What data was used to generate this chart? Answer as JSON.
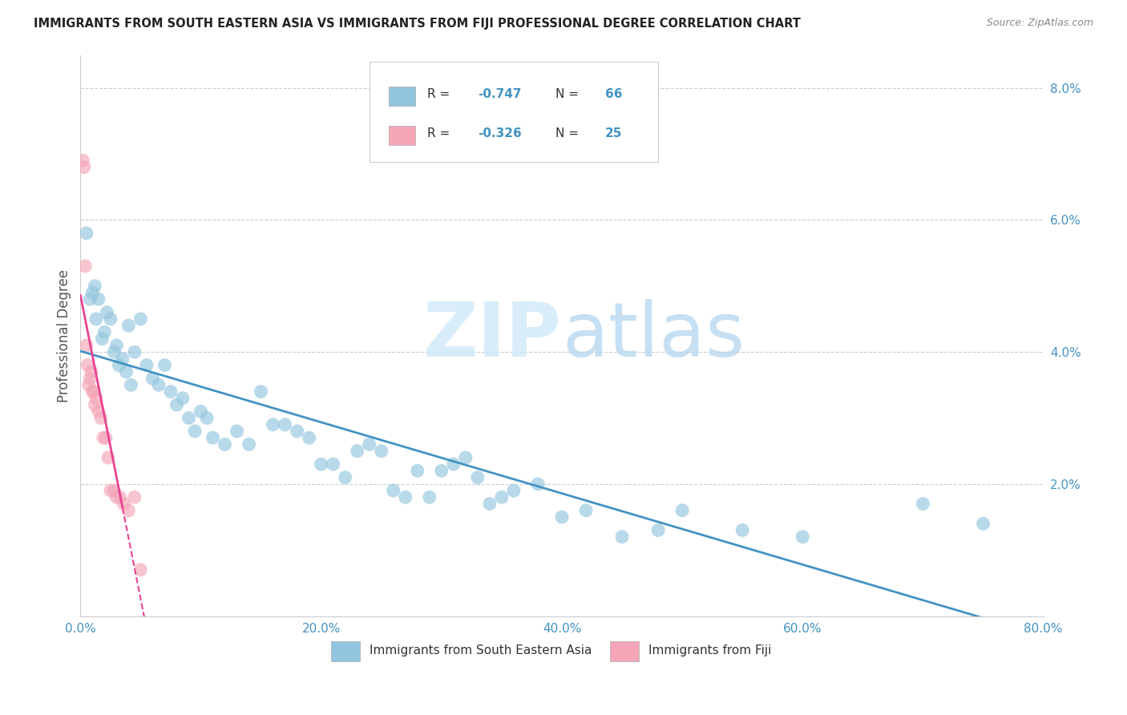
{
  "title": "IMMIGRANTS FROM SOUTH EASTERN ASIA VS IMMIGRANTS FROM FIJI PROFESSIONAL DEGREE CORRELATION CHART",
  "source": "Source: ZipAtlas.com",
  "ylabel": "Professional Degree",
  "x_tick_labels": [
    "0.0%",
    "20.0%",
    "40.0%",
    "60.0%",
    "80.0%"
  ],
  "x_tick_vals": [
    0.0,
    20.0,
    40.0,
    60.0,
    80.0
  ],
  "y_tick_labels_right": [
    "2.0%",
    "4.0%",
    "6.0%",
    "8.0%"
  ],
  "y_tick_vals": [
    2.0,
    4.0,
    6.0,
    8.0
  ],
  "xlim": [
    0.0,
    80.0
  ],
  "ylim": [
    0.0,
    8.5
  ],
  "legend_r1": "-0.747",
  "legend_n1": "66",
  "legend_r2": "-0.326",
  "legend_n2": "25",
  "blue_color": "#92c5de",
  "pink_color": "#f4a6b8",
  "trend_blue": "#4393c3",
  "trend_pink": "#e84393",
  "blue_scatter_x": [
    0.5,
    0.8,
    1.0,
    1.2,
    1.3,
    1.5,
    1.8,
    2.0,
    2.2,
    2.5,
    2.8,
    3.0,
    3.2,
    3.5,
    3.8,
    4.0,
    4.2,
    4.5,
    5.0,
    5.5,
    6.0,
    6.5,
    7.0,
    7.5,
    8.0,
    8.5,
    9.0,
    9.5,
    10.0,
    10.5,
    11.0,
    12.0,
    13.0,
    14.0,
    15.0,
    16.0,
    17.0,
    18.0,
    19.0,
    20.0,
    21.0,
    22.0,
    23.0,
    24.0,
    25.0,
    26.0,
    27.0,
    28.0,
    29.0,
    30.0,
    31.0,
    32.0,
    33.0,
    34.0,
    35.0,
    36.0,
    38.0,
    40.0,
    42.0,
    45.0,
    48.0,
    50.0,
    55.0,
    60.0,
    70.0,
    75.0
  ],
  "blue_scatter_y": [
    5.8,
    4.8,
    4.9,
    5.0,
    4.5,
    4.8,
    4.2,
    4.3,
    4.6,
    4.5,
    4.0,
    4.1,
    3.8,
    3.9,
    3.7,
    4.4,
    3.5,
    4.0,
    4.5,
    3.8,
    3.6,
    3.5,
    3.8,
    3.4,
    3.2,
    3.3,
    3.0,
    2.8,
    3.1,
    3.0,
    2.7,
    2.6,
    2.8,
    2.6,
    3.4,
    2.9,
    2.9,
    2.8,
    2.7,
    2.3,
    2.3,
    2.1,
    2.5,
    2.6,
    2.5,
    1.9,
    1.8,
    2.2,
    1.8,
    2.2,
    2.3,
    2.4,
    2.1,
    1.7,
    1.8,
    1.9,
    2.0,
    1.5,
    1.6,
    1.2,
    1.3,
    1.6,
    1.3,
    1.2,
    1.7,
    1.4
  ],
  "pink_scatter_x": [
    0.2,
    0.3,
    0.4,
    0.5,
    0.6,
    0.7,
    0.8,
    0.9,
    1.0,
    1.1,
    1.2,
    1.3,
    1.5,
    1.7,
    1.9,
    2.1,
    2.3,
    2.5,
    2.8,
    3.0,
    3.3,
    3.6,
    4.0,
    4.5,
    5.0
  ],
  "pink_scatter_y": [
    6.9,
    6.8,
    5.3,
    4.1,
    3.8,
    3.5,
    3.6,
    3.7,
    3.4,
    3.4,
    3.2,
    3.3,
    3.1,
    3.0,
    2.7,
    2.7,
    2.4,
    1.9,
    1.9,
    1.8,
    1.8,
    1.7,
    1.6,
    1.8,
    0.7
  ],
  "bottom_label1": "Immigrants from South Eastern Asia",
  "bottom_label2": "Immigrants from Fiji",
  "title_fontsize": 10.5,
  "tick_fontsize": 11,
  "label_fontsize": 11
}
